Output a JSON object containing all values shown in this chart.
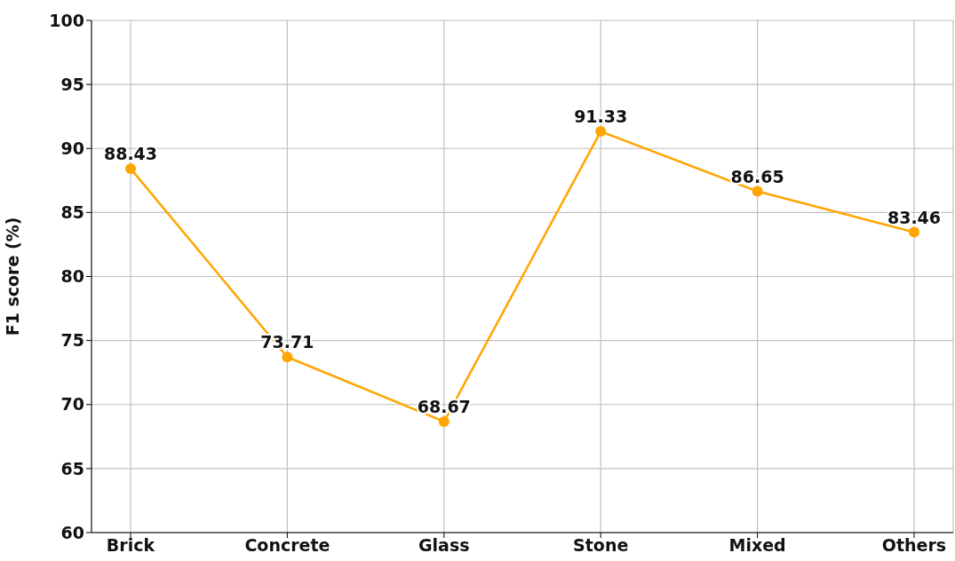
{
  "chart_data": {
    "type": "line",
    "ylabel": "F1 score (%)",
    "categories": [
      "Brick",
      "Concrete",
      "Glass",
      "Stone",
      "Mixed",
      "Others"
    ],
    "series": [
      {
        "color": "#ffa500",
        "values": [
          88.43,
          73.71,
          68.67,
          91.33,
          86.65,
          83.46
        ]
      }
    ],
    "ylim": [
      60,
      100
    ],
    "yticks": [
      60,
      65,
      70,
      75,
      80,
      85,
      90,
      95,
      100
    ],
    "grid": true,
    "data_labels": true,
    "marker": "circle",
    "line_style": "solid"
  }
}
